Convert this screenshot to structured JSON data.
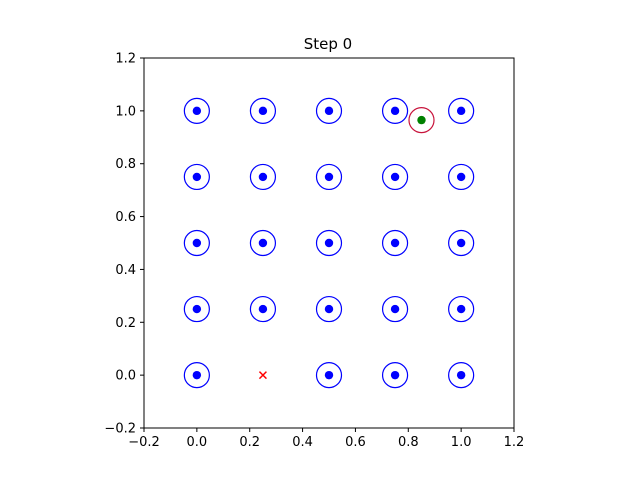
{
  "chart_data": {
    "type": "scatter",
    "title": "Step 0",
    "xlabel": "",
    "ylabel": "",
    "xlim": [
      -0.2,
      1.2
    ],
    "ylim": [
      -0.2,
      1.2
    ],
    "xticks": [
      -0.2,
      0.0,
      0.2,
      0.4,
      0.6,
      0.8,
      1.0,
      1.2
    ],
    "yticks": [
      -0.2,
      0.0,
      0.2,
      0.4,
      0.6,
      0.8,
      1.0,
      1.2
    ],
    "xtick_labels": [
      "−0.2",
      "0.0",
      "0.2",
      "0.4",
      "0.6",
      "0.8",
      "1.0",
      "1.2"
    ],
    "ytick_labels": [
      "−0.2",
      "0.0",
      "0.2",
      "0.4",
      "0.6",
      "0.8",
      "1.0",
      "1.2"
    ],
    "grid": false,
    "series": [
      {
        "marker": "dot",
        "ring": true,
        "color": "#0000ff",
        "points": [
          [
            0.0,
            0.0
          ],
          [
            0.5,
            0.0
          ],
          [
            0.75,
            0.0
          ],
          [
            1.0,
            0.0
          ],
          [
            0.0,
            0.25
          ],
          [
            0.25,
            0.25
          ],
          [
            0.5,
            0.25
          ],
          [
            0.75,
            0.25
          ],
          [
            1.0,
            0.25
          ],
          [
            0.0,
            0.5
          ],
          [
            0.25,
            0.5
          ],
          [
            0.5,
            0.5
          ],
          [
            0.75,
            0.5
          ],
          [
            1.0,
            0.5
          ],
          [
            0.0,
            0.75
          ],
          [
            0.25,
            0.75
          ],
          [
            0.5,
            0.75
          ],
          [
            0.75,
            0.75
          ],
          [
            1.0,
            0.75
          ],
          [
            0.0,
            1.0
          ],
          [
            0.25,
            1.0
          ],
          [
            0.5,
            1.0
          ],
          [
            0.75,
            1.0
          ],
          [
            1.0,
            1.0
          ]
        ]
      },
      {
        "marker": "cross",
        "color": "#ff0000",
        "points": [
          [
            0.25,
            0.0
          ]
        ]
      },
      {
        "marker": "dot",
        "ring": true,
        "color": "#008000",
        "ring_color": "#c8143c",
        "points": [
          [
            0.85,
            0.965
          ]
        ]
      }
    ]
  }
}
